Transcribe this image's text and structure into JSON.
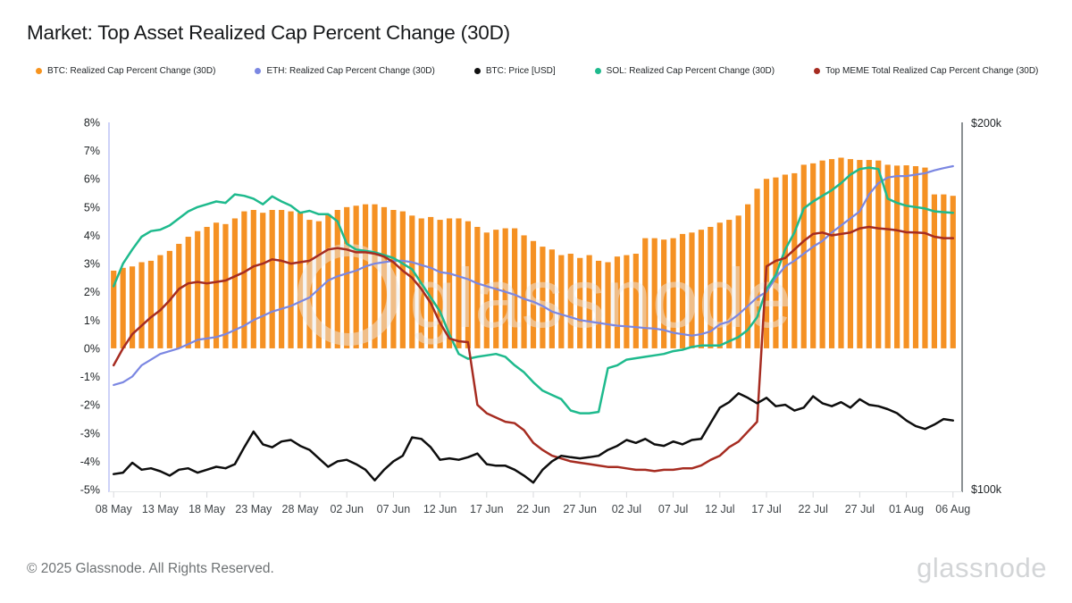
{
  "header": {
    "title": "Market: Top Asset Realized Cap Percent Change (30D)"
  },
  "legend": [
    {
      "label": "BTC: Realized Cap Percent Change (30D)",
      "color": "#f7941e"
    },
    {
      "label": "ETH: Realized Cap Percent Change (30D)",
      "color": "#7b87e2"
    },
    {
      "label": "BTC: Price [USD]",
      "color": "#111111"
    },
    {
      "label": "SOL: Realized Cap Percent Change (30D)",
      "color": "#1eba8d"
    },
    {
      "label": "Top MEME Total Realized Cap Percent Change (30D)",
      "color": "#a62c21"
    }
  ],
  "watermark": {
    "text": "glassnode"
  },
  "footer": {
    "copyright": "© 2025 Glassnode. All Rights Reserved.",
    "logo": "glassnode"
  },
  "chart_data": {
    "type": "mixed-bar-line",
    "x_axis": {
      "start": "08 May",
      "end": "06 Aug",
      "cadence": "daily",
      "points": 91,
      "tick_labels": [
        "08 May",
        "13 May",
        "18 May",
        "23 May",
        "28 May",
        "02 Jun",
        "07 Jun",
        "12 Jun",
        "17 Jun",
        "22 Jun",
        "27 Jun",
        "02 Jul",
        "07 Jul",
        "12 Jul",
        "17 Jul",
        "22 Jul",
        "27 Jul",
        "01 Aug",
        "06 Aug"
      ],
      "tick_interval_days": 5
    },
    "y_axis_left": {
      "unit": "%",
      "min": -5,
      "max": 8,
      "tick_labels": [
        "8%",
        "7%",
        "6%",
        "5%",
        "4%",
        "3%",
        "2%",
        "1%",
        "0%",
        "-1%",
        "-2%",
        "-3%",
        "-4%",
        "-5%"
      ]
    },
    "y_axis_right": {
      "unit": "USD",
      "min_usd": 100000,
      "max_usd": 200000,
      "tick_labels": [
        "$200k",
        "$100k"
      ]
    },
    "grid": false,
    "legend_position": "top-left",
    "series": [
      {
        "name": "BTC: Realized Cap Percent Change (30D)",
        "type": "bar",
        "axis": "left",
        "color": "#f59123",
        "values": [
          2.75,
          2.85,
          2.9,
          3.05,
          3.1,
          3.3,
          3.45,
          3.7,
          3.95,
          4.15,
          4.3,
          4.45,
          4.4,
          4.6,
          4.85,
          4.9,
          4.8,
          4.9,
          4.9,
          4.85,
          4.8,
          4.55,
          4.5,
          4.75,
          4.9,
          5.0,
          5.05,
          5.1,
          5.1,
          5.0,
          4.9,
          4.85,
          4.7,
          4.6,
          4.65,
          4.55,
          4.6,
          4.6,
          4.5,
          4.3,
          4.1,
          4.2,
          4.25,
          4.25,
          4.0,
          3.8,
          3.6,
          3.5,
          3.3,
          3.35,
          3.2,
          3.3,
          3.1,
          3.05,
          3.25,
          3.3,
          3.35,
          3.9,
          3.9,
          3.85,
          3.9,
          4.05,
          4.1,
          4.2,
          4.3,
          4.45,
          4.55,
          4.7,
          5.1,
          5.65,
          6.0,
          6.05,
          6.15,
          6.2,
          6.5,
          6.55,
          6.65,
          6.7,
          6.75,
          6.7,
          6.67,
          6.67,
          6.65,
          6.5,
          6.47,
          6.48,
          6.45,
          6.4,
          5.45,
          5.45,
          5.4
        ]
      },
      {
        "name": "ETH: Realized Cap Percent Change (30D)",
        "type": "line",
        "axis": "left",
        "color": "#7b87e2",
        "values": [
          -1.3,
          -1.2,
          -1.0,
          -0.6,
          -0.4,
          -0.2,
          -0.1,
          0.0,
          0.15,
          0.3,
          0.35,
          0.4,
          0.5,
          0.65,
          0.8,
          1.0,
          1.15,
          1.3,
          1.4,
          1.5,
          1.65,
          1.8,
          2.1,
          2.4,
          2.55,
          2.65,
          2.75,
          2.9,
          3.0,
          3.05,
          3.1,
          3.1,
          3.05,
          2.95,
          2.85,
          2.7,
          2.65,
          2.55,
          2.45,
          2.3,
          2.2,
          2.1,
          2.0,
          1.9,
          1.75,
          1.65,
          1.5,
          1.3,
          1.2,
          1.1,
          1.0,
          0.95,
          0.9,
          0.85,
          0.8,
          0.78,
          0.75,
          0.72,
          0.7,
          0.65,
          0.55,
          0.5,
          0.45,
          0.5,
          0.6,
          0.85,
          0.95,
          1.2,
          1.5,
          1.8,
          2.0,
          2.5,
          2.9,
          3.1,
          3.35,
          3.6,
          3.8,
          4.1,
          4.35,
          4.6,
          4.85,
          5.45,
          5.85,
          6.05,
          6.1,
          6.1,
          6.15,
          6.2,
          6.3,
          6.38,
          6.45
        ]
      },
      {
        "name": "SOL: Realized Cap Percent Change (30D)",
        "type": "line",
        "axis": "left",
        "color": "#1eba8d",
        "values": [
          2.2,
          3.0,
          3.5,
          3.95,
          4.15,
          4.2,
          4.35,
          4.6,
          4.85,
          5.0,
          5.1,
          5.2,
          5.15,
          5.45,
          5.4,
          5.3,
          5.1,
          5.38,
          5.2,
          5.05,
          4.8,
          4.87,
          4.75,
          4.75,
          4.5,
          3.7,
          3.5,
          3.45,
          3.4,
          3.3,
          3.2,
          3.0,
          2.8,
          2.3,
          1.8,
          1.3,
          0.5,
          -0.2,
          -0.37,
          -0.3,
          -0.25,
          -0.2,
          -0.3,
          -0.6,
          -0.85,
          -1.2,
          -1.5,
          -1.65,
          -1.8,
          -2.2,
          -2.3,
          -2.3,
          -2.25,
          -0.7,
          -0.6,
          -0.4,
          -0.35,
          -0.3,
          -0.25,
          -0.2,
          -0.1,
          -0.05,
          0.05,
          0.1,
          0.1,
          0.1,
          0.25,
          0.4,
          0.65,
          1.1,
          2.1,
          2.6,
          3.5,
          4.1,
          4.95,
          5.2,
          5.4,
          5.6,
          5.85,
          6.15,
          6.35,
          6.4,
          6.35,
          5.3,
          5.15,
          5.05,
          5.0,
          4.95,
          4.85,
          4.82,
          4.8
        ]
      },
      {
        "name": "Top MEME Total Realized Cap Percent Change (30D)",
        "type": "line",
        "axis": "left",
        "color": "#a62c21",
        "values": [
          -0.6,
          0.0,
          0.5,
          0.8,
          1.1,
          1.35,
          1.7,
          2.1,
          2.3,
          2.35,
          2.3,
          2.35,
          2.4,
          2.55,
          2.7,
          2.9,
          3.0,
          3.15,
          3.1,
          3.0,
          3.05,
          3.1,
          3.3,
          3.5,
          3.55,
          3.5,
          3.4,
          3.4,
          3.35,
          3.25,
          3.05,
          2.75,
          2.5,
          2.1,
          1.6,
          0.9,
          0.35,
          0.25,
          0.22,
          -2.0,
          -2.3,
          -2.45,
          -2.6,
          -2.65,
          -2.9,
          -3.35,
          -3.6,
          -3.8,
          -3.9,
          -4.0,
          -4.05,
          -4.1,
          -4.15,
          -4.2,
          -4.2,
          -4.25,
          -4.3,
          -4.3,
          -4.35,
          -4.3,
          -4.3,
          -4.25,
          -4.25,
          -4.15,
          -3.95,
          -3.8,
          -3.5,
          -3.3,
          -2.95,
          -2.6,
          2.9,
          3.1,
          3.2,
          3.5,
          3.8,
          4.05,
          4.1,
          4.0,
          4.05,
          4.1,
          4.25,
          4.3,
          4.25,
          4.22,
          4.18,
          4.11,
          4.1,
          4.08,
          3.95,
          3.9,
          3.9
        ]
      },
      {
        "name": "BTC: Price [USD]",
        "type": "line",
        "axis": "right",
        "color": "#0d0d0d",
        "values_usd_k": [
          104.2,
          104.6,
          107.3,
          105.4,
          105.8,
          105.0,
          103.8,
          105.4,
          105.8,
          104.6,
          105.4,
          106.2,
          105.8,
          106.9,
          111.5,
          115.8,
          112.3,
          111.5,
          113.1,
          113.5,
          111.9,
          110.8,
          108.5,
          106.2,
          107.7,
          108.1,
          106.9,
          105.4,
          102.5,
          105.4,
          107.7,
          109.2,
          114.2,
          113.8,
          111.5,
          108.1,
          108.5,
          108.1,
          108.8,
          109.8,
          106.9,
          106.5,
          106.5,
          105.4,
          103.8,
          101.9,
          105.4,
          107.7,
          109.2,
          108.8,
          108.5,
          108.8,
          109.2,
          110.8,
          111.9,
          113.5,
          112.7,
          113.8,
          112.3,
          111.9,
          113.1,
          112.3,
          113.5,
          113.8,
          118.1,
          122.3,
          123.8,
          126.2,
          125.0,
          123.5,
          125.0,
          122.7,
          123.1,
          121.5,
          122.3,
          125.4,
          123.5,
          122.7,
          123.8,
          122.3,
          124.6,
          123.1,
          122.7,
          121.9,
          120.8,
          118.8,
          117.3,
          116.5,
          117.7,
          119.2,
          118.8
        ]
      }
    ]
  }
}
